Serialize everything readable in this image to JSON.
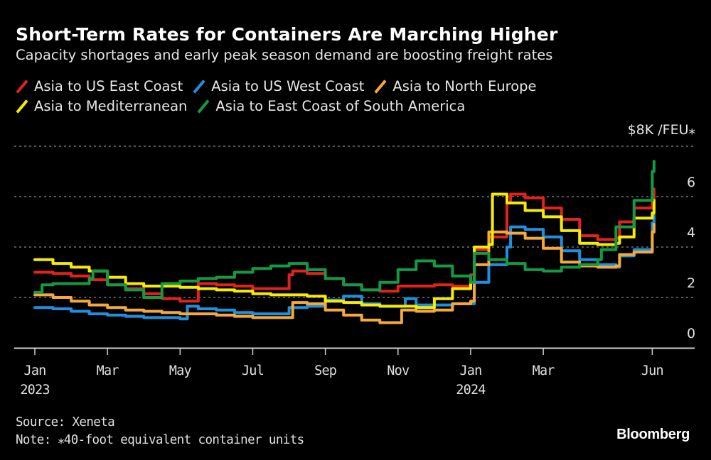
{
  "chart_data": {
    "type": "line",
    "title": "Short-Term Rates for Containers Are Marching Higher",
    "subtitle": "Capacity shortages and early peak season demand are boosting freight rates",
    "ylabel": "$8K /FEU⁎",
    "xlabel": "",
    "ylim": [
      0,
      8
    ],
    "yticks": [
      {
        "value": 0,
        "label": "0"
      },
      {
        "value": 2,
        "label": "2"
      },
      {
        "value": 4,
        "label": "4"
      },
      {
        "value": 6,
        "label": "6"
      }
    ],
    "y_top_gridline": 8,
    "xlim": [
      -0.3,
      18.9
    ],
    "x_unit": "months since Jan 2023",
    "xticks": [
      {
        "value": 0,
        "label": "Jan",
        "sublabel": "2023"
      },
      {
        "value": 2,
        "label": "Mar",
        "sublabel": ""
      },
      {
        "value": 4,
        "label": "May",
        "sublabel": ""
      },
      {
        "value": 6,
        "label": "Jul",
        "sublabel": ""
      },
      {
        "value": 8,
        "label": "Sep",
        "sublabel": ""
      },
      {
        "value": 10,
        "label": "Nov",
        "sublabel": ""
      },
      {
        "value": 12,
        "label": "Jan",
        "sublabel": "2024"
      },
      {
        "value": 14,
        "label": "Mar",
        "sublabel": ""
      },
      {
        "value": 17,
        "label": "Jun",
        "sublabel": ""
      }
    ],
    "grid": true,
    "legend_position": "top-left",
    "series": [
      {
        "name": "Asia to US East Coast",
        "color": "#e3221c",
        "x": [
          0,
          0.5,
          1,
          1.5,
          2,
          2.5,
          3,
          3.5,
          4,
          4.5,
          5,
          5.1,
          5.5,
          6,
          6.5,
          7,
          7.1,
          7.5,
          8,
          8.5,
          9,
          9.5,
          10,
          10.5,
          11,
          11.5,
          12,
          12.1,
          12.5,
          13,
          13.1,
          13.5,
          14,
          14.5,
          15,
          15.5,
          16,
          16.1,
          16.5,
          17,
          17.05
        ],
        "y": [
          3.0,
          2.95,
          2.85,
          2.7,
          2.5,
          2.35,
          2.15,
          1.95,
          1.85,
          2.55,
          2.5,
          2.5,
          2.45,
          2.35,
          2.35,
          2.9,
          3.05,
          2.95,
          2.75,
          2.5,
          2.3,
          2.25,
          2.45,
          2.45,
          2.5,
          2.45,
          2.9,
          3.9,
          4.4,
          5.75,
          6.1,
          5.95,
          5.55,
          5.1,
          4.45,
          4.3,
          4.35,
          5.0,
          5.55,
          5.75,
          6.3
        ]
      },
      {
        "name": "Asia to US West Coast",
        "color": "#1e90e0",
        "x": [
          0,
          0.5,
          1,
          1.5,
          2,
          2.5,
          3,
          3.5,
          4,
          4.2,
          4.5,
          5,
          5.5,
          6,
          6.5,
          7,
          7.5,
          8,
          8.5,
          9,
          9.5,
          10,
          10.2,
          10.5,
          11,
          11.5,
          12,
          12.1,
          12.5,
          13,
          13.1,
          13.5,
          14,
          14.5,
          15,
          15.5,
          16,
          16.1,
          16.5,
          17,
          17.05
        ],
        "y": [
          1.6,
          1.55,
          1.45,
          1.35,
          1.3,
          1.25,
          1.2,
          1.2,
          1.15,
          1.65,
          1.55,
          1.5,
          1.4,
          1.35,
          1.35,
          1.6,
          1.65,
          1.9,
          2.05,
          1.75,
          1.65,
          1.65,
          1.95,
          1.7,
          1.7,
          1.75,
          1.75,
          2.6,
          3.3,
          4.0,
          4.8,
          4.7,
          4.4,
          3.85,
          3.5,
          3.3,
          3.2,
          3.65,
          3.9,
          4.95,
          5.25
        ]
      },
      {
        "name": "Asia to North Europe",
        "color": "#f6a93b",
        "x": [
          0,
          0.5,
          1,
          1.5,
          2,
          2.5,
          3,
          3.5,
          4,
          4.5,
          5,
          5.5,
          6,
          6.5,
          7,
          7.1,
          7.5,
          8,
          8.5,
          9,
          9.5,
          10,
          10.1,
          10.5,
          11,
          11.5,
          12,
          12.1,
          12.5,
          13,
          13.5,
          14,
          14.5,
          15,
          15.5,
          16,
          16.1,
          16.5,
          17,
          17.05
        ],
        "y": [
          2.1,
          2.0,
          1.85,
          1.7,
          1.6,
          1.5,
          1.45,
          1.4,
          1.35,
          1.35,
          1.3,
          1.25,
          1.2,
          1.2,
          1.2,
          1.8,
          1.75,
          1.5,
          1.3,
          1.1,
          1.0,
          1.0,
          1.5,
          1.45,
          1.5,
          1.75,
          1.85,
          3.3,
          4.6,
          4.55,
          4.35,
          3.95,
          3.4,
          3.25,
          3.2,
          3.25,
          3.7,
          3.8,
          4.6,
          4.9
        ]
      },
      {
        "name": "Asia to Mediterranean",
        "color": "#f5ec00",
        "x": [
          0,
          0.5,
          1,
          1.5,
          2,
          2.5,
          3,
          3.5,
          4,
          4.5,
          5,
          5.5,
          6,
          6.5,
          7,
          7.5,
          8,
          8.5,
          9,
          9.5,
          10,
          10.5,
          11,
          11.5,
          12,
          12.1,
          12.5,
          12.6,
          13,
          13.5,
          14,
          14.5,
          15,
          15.5,
          16,
          16.1,
          16.5,
          17,
          17.05
        ],
        "y": [
          3.5,
          3.35,
          3.2,
          3.05,
          2.8,
          2.55,
          2.45,
          2.45,
          2.4,
          2.35,
          2.3,
          2.25,
          2.15,
          2.1,
          2.1,
          2.05,
          1.85,
          1.8,
          1.7,
          1.65,
          1.65,
          1.6,
          1.95,
          2.35,
          2.6,
          4.0,
          4.1,
          6.1,
          5.75,
          5.45,
          5.2,
          4.65,
          4.15,
          4.1,
          4.15,
          4.4,
          5.15,
          5.35,
          5.85
        ]
      },
      {
        "name": "Asia to East Coast of South America",
        "color": "#139a43",
        "x": [
          0,
          0.2,
          0.5,
          1,
          1.5,
          1.6,
          2,
          2.5,
          3,
          3.5,
          4,
          4.5,
          5,
          5.5,
          6,
          6.5,
          7,
          7.5,
          8,
          8.5,
          9,
          9.5,
          10,
          10.5,
          11,
          11.5,
          12,
          12.1,
          12.5,
          13,
          13.5,
          14,
          14.5,
          15,
          15.5,
          15.6,
          16,
          16.5,
          17,
          17.05
        ],
        "y": [
          2.2,
          2.5,
          2.55,
          2.55,
          2.75,
          3.05,
          2.5,
          2.3,
          2.0,
          2.55,
          2.65,
          2.75,
          2.8,
          3.0,
          3.15,
          3.25,
          3.35,
          3.1,
          2.75,
          2.5,
          2.3,
          2.6,
          3.1,
          3.45,
          3.25,
          2.85,
          2.6,
          3.75,
          3.5,
          3.35,
          3.1,
          3.05,
          3.2,
          3.3,
          3.5,
          3.9,
          4.8,
          5.85,
          7.0,
          7.4
        ]
      }
    ],
    "source": "Source: Xeneta",
    "note": "Note: ⁎40-foot equivalent container units",
    "brand": "Bloomberg"
  }
}
